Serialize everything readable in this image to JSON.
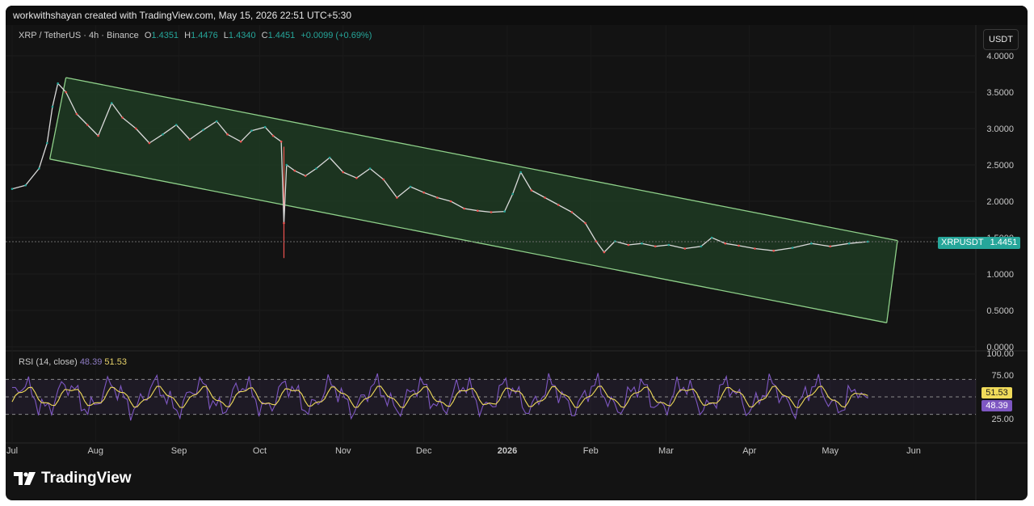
{
  "header": {
    "created_text": "workwithshayan created with TradingView.com, May 15, 2026 22:51 UTC+5:30"
  },
  "legend": {
    "symbol": "XRP / TetherUS · 4h · Binance",
    "open_label": "O",
    "open": "1.4351",
    "high_label": "H",
    "high": "1.4476",
    "low_label": "L",
    "low": "1.4340",
    "close_label": "C",
    "close": "1.4451",
    "change": "+0.0099 (+0.69%)"
  },
  "currency_button": "USDT",
  "price_tag": {
    "symbol": "XRPUSDT",
    "value": "1.4451"
  },
  "rsi_legend": {
    "label": "RSI (14, close)",
    "rsi_value": "48.39",
    "ma_value": "51.53"
  },
  "rsi_tags": {
    "ma": "51.53",
    "rsi": "48.39"
  },
  "logo_text": "TradingView",
  "colors": {
    "up": "#26a69a",
    "down": "#ef5350",
    "channel": "#8fd18a",
    "channel_fill": "#1f3b23",
    "rsi_line": "#7e57c2",
    "rsi_ma": "#f0db5a",
    "background": "#131313"
  },
  "chart_data": [
    {
      "type": "line",
      "title": "XRP / TetherUS · 4h · Binance",
      "x_ticks": [
        "Jul",
        "Aug",
        "Sep",
        "Oct",
        "Nov",
        "Dec",
        "2026",
        "Feb",
        "Mar",
        "Apr",
        "May",
        "Jun"
      ],
      "y_ticks": [
        "4.0000",
        "3.5000",
        "3.0000",
        "2.5000",
        "2.0000",
        "1.5000",
        "1.0000",
        "0.5000",
        "0.0000"
      ],
      "ylim": [
        0,
        4
      ],
      "xlim": [
        "2025-07-01",
        "2026-06-01"
      ],
      "series": [
        {
          "x": [
            "2025-07-01",
            "2025-07-06",
            "2025-07-11",
            "2025-07-14",
            "2025-07-16",
            "2025-07-18",
            "2025-07-21",
            "2025-07-25",
            "2025-07-29",
            "2025-08-02",
            "2025-08-07",
            "2025-08-11",
            "2025-08-16",
            "2025-08-21",
            "2025-08-26",
            "2025-08-31",
            "2025-09-05",
            "2025-09-10",
            "2025-09-15",
            "2025-09-19",
            "2025-09-24",
            "2025-09-28",
            "2025-10-03",
            "2025-10-06",
            "2025-10-09",
            "2025-10-10",
            "2025-10-11",
            "2025-10-14",
            "2025-10-18",
            "2025-10-22",
            "2025-10-27",
            "2025-11-01",
            "2025-11-06",
            "2025-11-11",
            "2025-11-16",
            "2025-11-21",
            "2025-11-26",
            "2025-12-01",
            "2025-12-06",
            "2025-12-11",
            "2025-12-16",
            "2025-12-21",
            "2025-12-26",
            "2025-12-31",
            "2026-01-03",
            "2026-01-06",
            "2026-01-10",
            "2026-01-15",
            "2026-01-20",
            "2026-01-25",
            "2026-01-30",
            "2026-02-03",
            "2026-02-06",
            "2026-02-10",
            "2026-02-15",
            "2026-02-20",
            "2026-02-25",
            "2026-03-02",
            "2026-03-08",
            "2026-03-14",
            "2026-03-18",
            "2026-03-23",
            "2026-03-28",
            "2026-04-03",
            "2026-04-10",
            "2026-04-17",
            "2026-04-24",
            "2026-05-01",
            "2026-05-08",
            "2026-05-15"
          ],
          "y": [
            2.17,
            2.22,
            2.45,
            2.8,
            3.3,
            3.62,
            3.5,
            3.2,
            3.05,
            2.9,
            3.35,
            3.15,
            3.0,
            2.8,
            2.92,
            3.05,
            2.85,
            2.98,
            3.1,
            2.92,
            2.82,
            2.97,
            3.02,
            2.9,
            2.82,
            1.7,
            2.5,
            2.42,
            2.35,
            2.45,
            2.6,
            2.4,
            2.32,
            2.45,
            2.3,
            2.05,
            2.2,
            2.12,
            2.05,
            2.0,
            1.9,
            1.87,
            1.85,
            1.86,
            2.1,
            2.4,
            2.15,
            2.05,
            1.95,
            1.85,
            1.7,
            1.45,
            1.3,
            1.45,
            1.4,
            1.42,
            1.38,
            1.4,
            1.35,
            1.38,
            1.5,
            1.42,
            1.39,
            1.35,
            1.32,
            1.36,
            1.42,
            1.38,
            1.42,
            1.4451
          ]
        }
      ],
      "annotations": [
        {
          "type": "parallel_channel",
          "upper": [
            [
              "2025-07-21",
              3.7
            ],
            [
              "2026-05-26",
              1.46
            ]
          ],
          "lower": [
            [
              "2025-07-15",
              2.58
            ],
            [
              "2026-05-22",
              0.33
            ]
          ]
        }
      ]
    },
    {
      "type": "line",
      "title": "RSI (14, close)",
      "y_ticks": [
        "100.00",
        "75.00",
        "25.00"
      ],
      "ylim": [
        0,
        100
      ],
      "levels": [
        70,
        50,
        30
      ],
      "series": [
        {
          "name": "RSI",
          "last": 48.39
        },
        {
          "name": "RSI-based MA",
          "last": 51.53
        }
      ]
    }
  ]
}
